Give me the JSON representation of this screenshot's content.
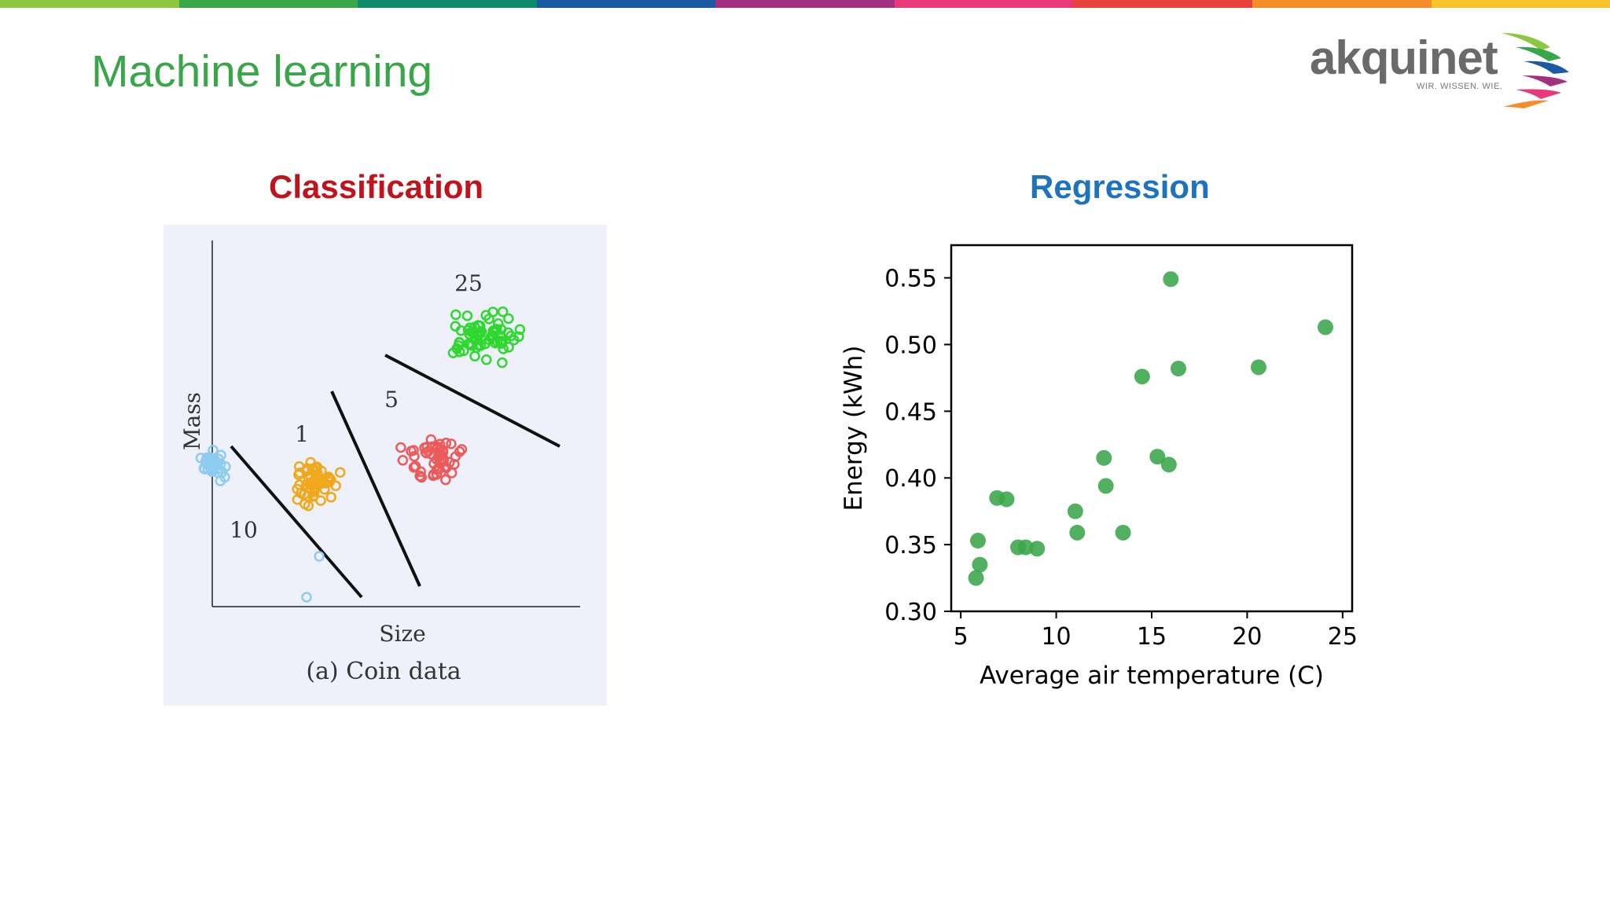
{
  "slide": {
    "title": "Machine learning"
  },
  "brand": {
    "logo_word": "akquinet",
    "logo_tagline": "WIR. WISSEN. WIE.",
    "colors": [
      "#8dc63f",
      "#3aa64a",
      "#0f8b6b",
      "#1a5aa3",
      "#a3307e",
      "#e8397a",
      "#e8423f",
      "#f58d2a",
      "#f9c32b"
    ]
  },
  "classification": {
    "title": "Classification",
    "title_color": "#c0141c",
    "figure": {
      "xlabel": "Size",
      "ylabel": "Mass",
      "caption": "(a) Coin data",
      "clusters": [
        {
          "label": "10",
          "color": "#8ecbf0"
        },
        {
          "label": "1",
          "color": "#f0a81c"
        },
        {
          "label": "5",
          "color": "#ec5b5b"
        },
        {
          "label": "25",
          "color": "#2ed82e"
        }
      ]
    }
  },
  "regression": {
    "title": "Regression",
    "title_color": "#1f73bd"
  },
  "chart_data": {
    "type": "scatter",
    "xlabel": "Average air temperature (C)",
    "ylabel": "Energy (kWh)",
    "xlim": [
      4.5,
      25.5
    ],
    "ylim": [
      0.3,
      0.5745
    ],
    "xticks": [
      5,
      10,
      15,
      20,
      25
    ],
    "yticks": [
      0.3,
      0.35,
      0.4,
      0.45,
      0.5,
      0.55
    ],
    "marker_color": "#3aa64a",
    "grid": false,
    "points": [
      [
        5.8,
        0.325
      ],
      [
        5.9,
        0.353
      ],
      [
        6.0,
        0.335
      ],
      [
        6.9,
        0.385
      ],
      [
        7.4,
        0.384
      ],
      [
        8.0,
        0.348
      ],
      [
        8.4,
        0.348
      ],
      [
        9.0,
        0.347
      ],
      [
        11.0,
        0.375
      ],
      [
        11.1,
        0.359
      ],
      [
        12.5,
        0.415
      ],
      [
        12.6,
        0.394
      ],
      [
        13.5,
        0.359
      ],
      [
        14.5,
        0.476
      ],
      [
        15.3,
        0.416
      ],
      [
        15.9,
        0.41
      ],
      [
        16.0,
        0.549
      ],
      [
        16.4,
        0.482
      ],
      [
        20.6,
        0.483
      ],
      [
        24.1,
        0.513
      ]
    ]
  }
}
